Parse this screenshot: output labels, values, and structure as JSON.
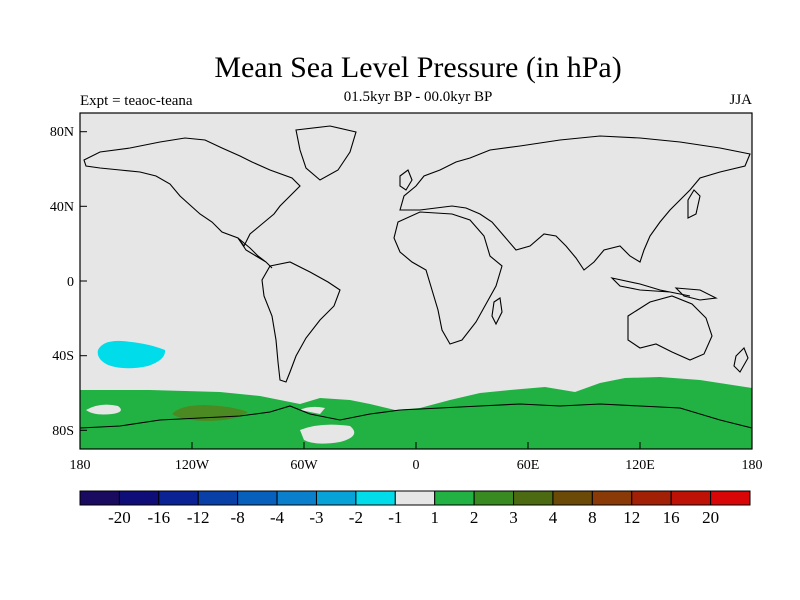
{
  "title": "Mean Sea Level Pressure (in hPa)",
  "left_string": "Expt = teaoc-teana",
  "center_string": "01.5kyr BP - 00.0kyr BP",
  "right_string": "JJA",
  "map": {
    "projection": "cylindrical equidistant",
    "lon_range": [
      -180,
      180
    ],
    "lat_range": [
      -90,
      90
    ],
    "background_color": "#e6e6e6",
    "lat_ticks": [
      "80N",
      "40N",
      "0",
      "40S",
      "80S"
    ],
    "lon_ticks": [
      "180",
      "120W",
      "60W",
      "0",
      "60E",
      "120E",
      "180"
    ],
    "shaded_regions": [
      {
        "category": "-2",
        "color": "#00dcea",
        "approx_location": "South Pacific ~40S, 150W"
      },
      {
        "category": "1",
        "color": "#22b244",
        "approx_location": "Southern Ocean band ~60S-80S"
      },
      {
        "category": "2",
        "color": "#4b8a22",
        "approx_location": "Amundsen Sea ~70S, 110W"
      }
    ]
  },
  "colorbar": {
    "colors": [
      "#1a0a60",
      "#0f0e78",
      "#0a2294",
      "#0840a8",
      "#0660bc",
      "#0a80cc",
      "#06a2d8",
      "#00dcea",
      "#e6e6e6",
      "#22b244",
      "#3a8a22",
      "#4b6a12",
      "#6a4a06",
      "#8a3a06",
      "#a22006",
      "#be1206",
      "#d80606"
    ],
    "labels": [
      "-20",
      "-16",
      "-12",
      "-8",
      "-4",
      "-3",
      "-2",
      "-1",
      "1",
      "2",
      "3",
      "4",
      "8",
      "12",
      "16",
      "20"
    ]
  }
}
